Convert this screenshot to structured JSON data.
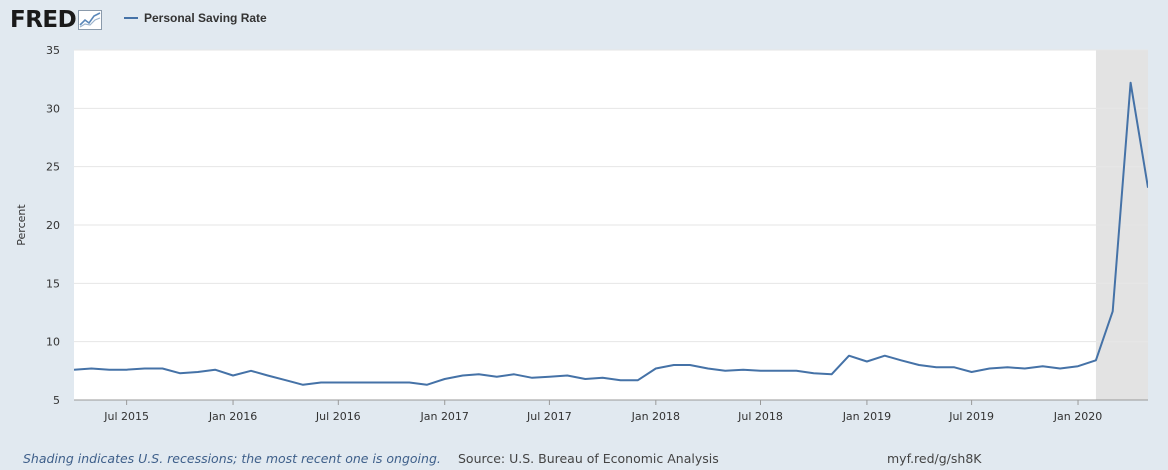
{
  "header": {
    "logo_text": "FRED",
    "legend_label": "Personal Saving Rate"
  },
  "colors": {
    "series": "#4572a7",
    "recession": "#e3e3e3",
    "background": "#e1e9f0"
  },
  "footer": {
    "footnote": "Shading indicates U.S. recessions; the most recent one is ongoing.",
    "source": "Source: U.S. Bureau of Economic Analysis",
    "link": "myf.red/g/sh8K"
  },
  "chart_data": {
    "type": "line",
    "title": "",
    "ylabel": "Percent",
    "xlabel": "",
    "ylim": [
      5,
      35
    ],
    "yticks": [
      5,
      10,
      15,
      20,
      25,
      30,
      35
    ],
    "xlim": [
      "2015-04-01",
      "2020-05-01"
    ],
    "xticks": [
      {
        "date": "2015-07-01",
        "label": "Jul 2015"
      },
      {
        "date": "2016-01-01",
        "label": "Jan 2016"
      },
      {
        "date": "2016-07-01",
        "label": "Jul 2016"
      },
      {
        "date": "2017-01-01",
        "label": "Jan 2017"
      },
      {
        "date": "2017-07-01",
        "label": "Jul 2017"
      },
      {
        "date": "2018-01-01",
        "label": "Jan 2018"
      },
      {
        "date": "2018-07-01",
        "label": "Jul 2018"
      },
      {
        "date": "2019-01-01",
        "label": "Jan 2019"
      },
      {
        "date": "2019-07-01",
        "label": "Jul 2019"
      },
      {
        "date": "2020-01-01",
        "label": "Jan 2020"
      }
    ],
    "recessions": [
      {
        "start": "2020-02-01",
        "end": "2020-05-01"
      }
    ],
    "grid": true,
    "series": [
      {
        "name": "Personal Saving Rate",
        "x": [
          "2015-04-01",
          "2015-05-01",
          "2015-06-01",
          "2015-07-01",
          "2015-08-01",
          "2015-09-01",
          "2015-10-01",
          "2015-11-01",
          "2015-12-01",
          "2016-01-01",
          "2016-02-01",
          "2016-03-01",
          "2016-04-01",
          "2016-05-01",
          "2016-06-01",
          "2016-07-01",
          "2016-08-01",
          "2016-09-01",
          "2016-10-01",
          "2016-11-01",
          "2016-12-01",
          "2017-01-01",
          "2017-02-01",
          "2017-03-01",
          "2017-04-01",
          "2017-05-01",
          "2017-06-01",
          "2017-07-01",
          "2017-08-01",
          "2017-09-01",
          "2017-10-01",
          "2017-11-01",
          "2017-12-01",
          "2018-01-01",
          "2018-02-01",
          "2018-03-01",
          "2018-04-01",
          "2018-05-01",
          "2018-06-01",
          "2018-07-01",
          "2018-08-01",
          "2018-09-01",
          "2018-10-01",
          "2018-11-01",
          "2018-12-01",
          "2019-01-01",
          "2019-02-01",
          "2019-03-01",
          "2019-04-01",
          "2019-05-01",
          "2019-06-01",
          "2019-07-01",
          "2019-08-01",
          "2019-09-01",
          "2019-10-01",
          "2019-11-01",
          "2019-12-01",
          "2020-01-01",
          "2020-02-01",
          "2020-03-01",
          "2020-04-01",
          "2020-05-01"
        ],
        "values": [
          7.6,
          7.7,
          7.6,
          7.6,
          7.7,
          7.7,
          7.3,
          7.4,
          7.6,
          7.1,
          7.5,
          7.1,
          6.7,
          6.3,
          6.5,
          6.5,
          6.5,
          6.5,
          6.5,
          6.5,
          6.3,
          6.8,
          7.1,
          7.2,
          7.0,
          7.2,
          6.9,
          7.0,
          7.1,
          6.8,
          6.9,
          6.7,
          6.7,
          7.7,
          8.0,
          8.0,
          7.7,
          7.5,
          7.6,
          7.5,
          7.5,
          7.5,
          7.3,
          7.2,
          8.8,
          8.3,
          8.8,
          8.4,
          8.0,
          7.8,
          7.8,
          7.4,
          7.7,
          7.8,
          7.7,
          7.9,
          7.7,
          7.9,
          8.4,
          12.6,
          32.2,
          23.2
        ]
      }
    ]
  }
}
